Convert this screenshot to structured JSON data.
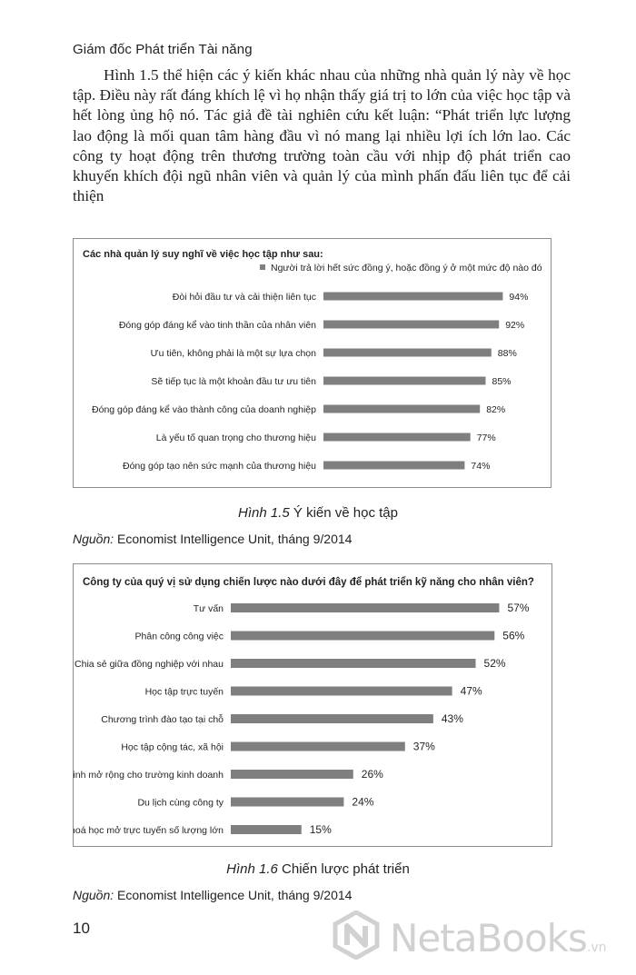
{
  "running_head": "Giám đốc Phát triển Tài năng",
  "body_paragraph": "Hình 1.5 thể hiện các ý kiến khác nhau của những nhà quản lý này về học tập. Điều này rất đáng khích lệ vì họ nhận thấy giá trị to lớn của việc học tập và hết lòng ủng hộ nó. Tác giả đề tài nghiên cứu kết luận: “Phát triển lực lượng lao động là mối quan tâm hàng đầu vì nó mang lại nhiều lợi ích lớn lao. Các công ty hoạt động trên thương trường toàn cầu với nhịp độ phát triển cao khuyến khích đội ngũ nhân viên và quản lý của mình phấn đấu liên tục để cải thiện",
  "figure1": {
    "label": "Hình 1.5",
    "caption": "Ý kiến về học tập",
    "source_label": "Nguồn:",
    "source_text": "Economist Intelligence Unit, tháng 9/2014"
  },
  "figure2": {
    "label": "Hình 1.6",
    "caption": "Chiến lược phát triển",
    "source_label": "Nguồn:",
    "source_text": "Economist Intelligence Unit, tháng 9/2014"
  },
  "page_number": "10",
  "watermark": {
    "text": "NetaBooks",
    "suffix": ".vn"
  },
  "colors": {
    "bar": "#7f7f7f",
    "frame": "#8c8c8c",
    "text": "#231f20"
  },
  "chart_data": [
    {
      "type": "bar",
      "orientation": "horizontal",
      "title": "Các nhà quản lý suy nghĩ về việc học tập như sau:",
      "legend_position": "top-right",
      "series": [
        {
          "name": "Người trả lời hết sức đồng ý, hoặc đồng ý ở một mức độ nào đó",
          "values": [
            94,
            92,
            88,
            85,
            82,
            77,
            74
          ]
        }
      ],
      "categories": [
        "Đòi hỏi đầu tư và cải thiện liên tục",
        "Đóng góp đáng kể vào tinh thần của nhân viên",
        "Ưu tiên, không phải là một sự lựa chọn",
        "Sẽ tiếp tục là một khoản đầu tư ưu tiên",
        "Đóng góp đáng kể vào thành công của doanh nghiệp",
        "Là yếu tố quan trọng cho thương hiệu",
        "Đóng góp tạo nên sức mạnh của thương hiệu"
      ],
      "labels": [
        "94%",
        "92%",
        "88%",
        "85%",
        "82%",
        "77%",
        "74%"
      ],
      "xlim": [
        0,
        100
      ],
      "unit": "%",
      "grid": false
    },
    {
      "type": "bar",
      "orientation": "horizontal",
      "title": "Công ty của quý vị sử dụng chiến lược nào dưới đây để phát triển kỹ năng cho nhân viên?",
      "categories": [
        "Tư vấn",
        "Phân công công việc",
        "Chia sẻ giữa đồng nghiệp với nhau",
        "Học tập trực tuyến",
        "Chương trình đào tạo tại chỗ",
        "Học tập cộng tác, xã hội",
        "Tuyển sinh mở rộng cho trường kinh doanh",
        "Du lịch cùng công ty",
        "Khoá học mở trực tuyến số lượng lớn"
      ],
      "values": [
        57,
        56,
        52,
        47,
        43,
        37,
        26,
        24,
        15
      ],
      "labels": [
        "57%",
        "56%",
        "52%",
        "47%",
        "43%",
        "37%",
        "26%",
        "24%",
        "15%"
      ],
      "xlim": [
        0,
        60
      ],
      "unit": "%",
      "grid": false
    }
  ]
}
